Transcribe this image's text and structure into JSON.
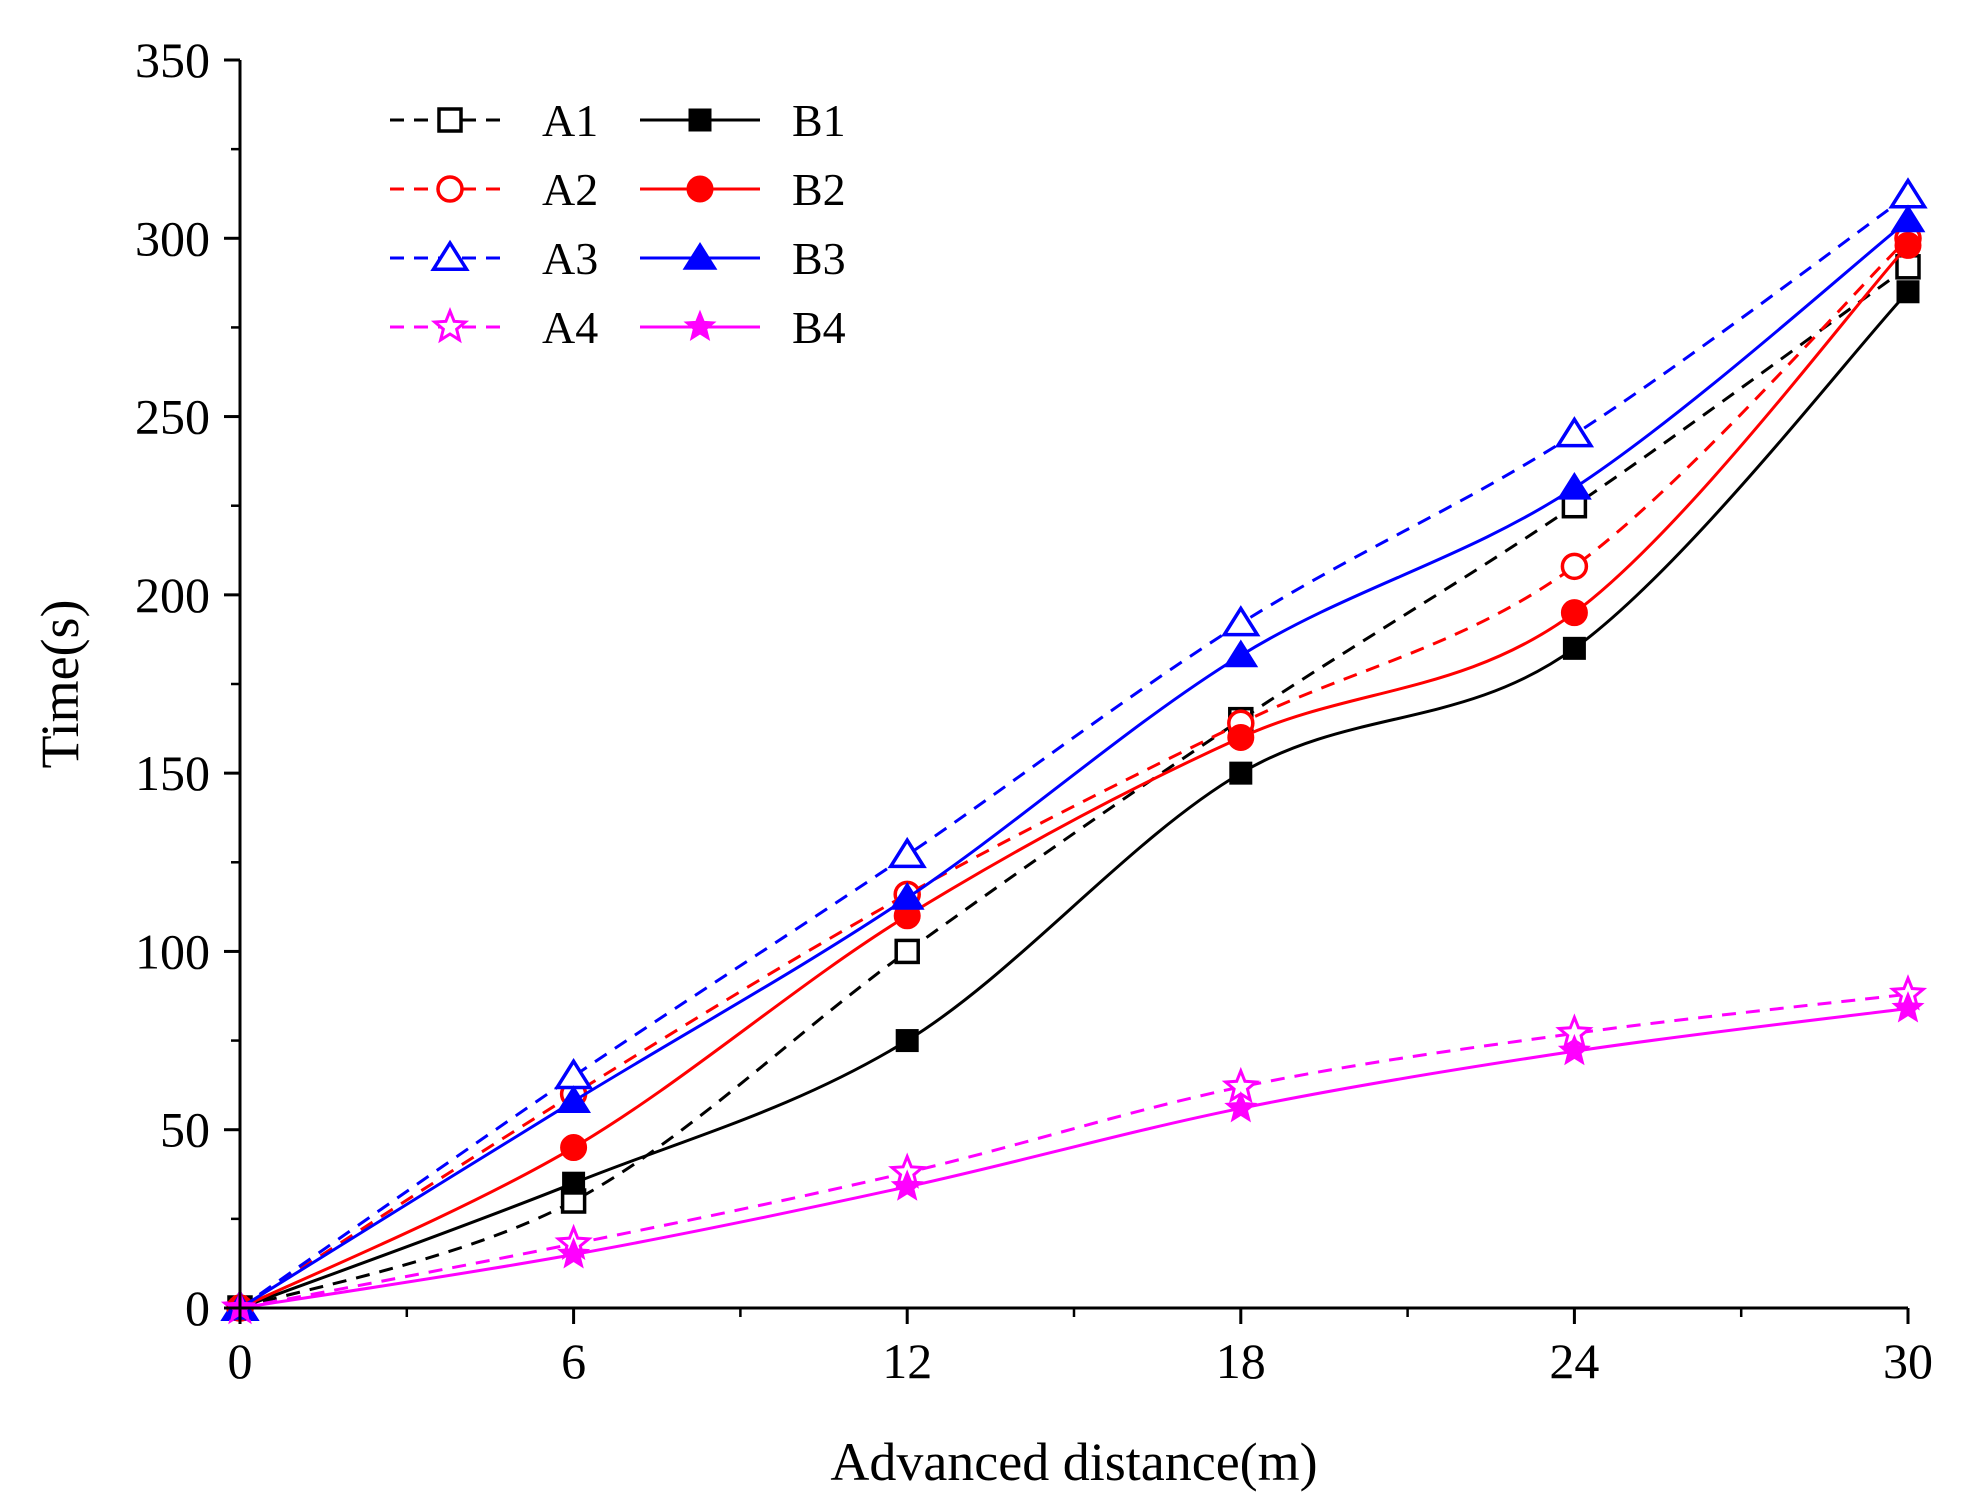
{
  "chart_data": {
    "type": "line",
    "title": "",
    "xlabel": "Advanced distance(m)",
    "ylabel": "Time(s)",
    "xlim": [
      0,
      30
    ],
    "ylim": [
      0,
      350
    ],
    "xticks": [
      0,
      6,
      12,
      18,
      24,
      30
    ],
    "yticks": [
      0,
      50,
      100,
      150,
      200,
      250,
      300,
      350
    ],
    "x": [
      0,
      6,
      12,
      18,
      24,
      30
    ],
    "legend_position": "top-left",
    "series": [
      {
        "name": "A1",
        "values": [
          0,
          30,
          100,
          165,
          225,
          292
        ],
        "color": "#000000",
        "dash": "dashed",
        "marker": "square-open"
      },
      {
        "name": "A2",
        "values": [
          0,
          60,
          116,
          164,
          208,
          300
        ],
        "color": "#ff0000",
        "dash": "dashed",
        "marker": "circle-open"
      },
      {
        "name": "A3",
        "values": [
          0,
          65,
          127,
          192,
          245,
          312
        ],
        "color": "#0000ff",
        "dash": "dashed",
        "marker": "triangle-open"
      },
      {
        "name": "A4",
        "values": [
          0,
          18,
          38,
          62,
          77,
          88
        ],
        "color": "#ff00ff",
        "dash": "dashed",
        "marker": "star-open"
      },
      {
        "name": "B1",
        "values": [
          0,
          35,
          75,
          150,
          185,
          285
        ],
        "color": "#000000",
        "dash": "solid",
        "marker": "square-filled"
      },
      {
        "name": "B2",
        "values": [
          0,
          45,
          110,
          160,
          195,
          298
        ],
        "color": "#ff0000",
        "dash": "solid",
        "marker": "circle-filled"
      },
      {
        "name": "B3",
        "values": [
          0,
          58,
          115,
          183,
          230,
          305
        ],
        "color": "#0000ff",
        "dash": "solid",
        "marker": "triangle-filled"
      },
      {
        "name": "B4",
        "values": [
          0,
          15,
          34,
          56,
          72,
          84
        ],
        "color": "#ff00ff",
        "dash": "solid",
        "marker": "star-filled"
      }
    ]
  }
}
